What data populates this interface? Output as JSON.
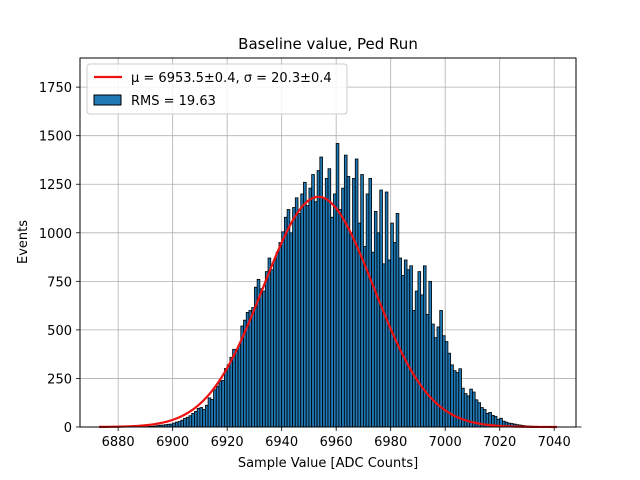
{
  "chart_data": {
    "type": "bar",
    "title": "Baseline value, Ped Run",
    "xlabel": "Sample Value [ADC Counts]",
    "ylabel": "Events",
    "xlim": [
      6866,
      7048
    ],
    "ylim": [
      0,
      1900
    ],
    "xticks": [
      6880,
      6900,
      6920,
      6940,
      6960,
      6980,
      7000,
      7020,
      7040
    ],
    "yticks": [
      0,
      250,
      500,
      750,
      1000,
      1250,
      1500,
      1750
    ],
    "grid": true,
    "legend_position": "top-left",
    "bin_width": 1,
    "bin_start": 6873,
    "colors": {
      "bar": "#1f77b4",
      "bar_edge": "#000000",
      "fit": "#ee1111",
      "grid": "#b0b0b0"
    },
    "histogram": {
      "name": "RMS = 19.63",
      "values": [
        0,
        0,
        0,
        0,
        0,
        0,
        0,
        0,
        0,
        0,
        0,
        0,
        0,
        0,
        0,
        0,
        1,
        2,
        3,
        4,
        5,
        7,
        9,
        10,
        12,
        14,
        15,
        20,
        25,
        28,
        35,
        44,
        50,
        58,
        70,
        80,
        96,
        100,
        90,
        112,
        150,
        142,
        192,
        210,
        237,
        240,
        301,
        320,
        359,
        400,
        395,
        421,
        520,
        550,
        590,
        600,
        615,
        720,
        760,
        712,
        700,
        800,
        870,
        810,
        860,
        900,
        950,
        1005,
        1080,
        1120,
        1000,
        1130,
        1180,
        1100,
        1200,
        1260,
        1140,
        1230,
        1300,
        1160,
        1320,
        1390,
        1180,
        1280,
        1330,
        1080,
        1200,
        1460,
        1120,
        1230,
        1400,
        1290,
        1000,
        1280,
        1380,
        1050,
        1300,
        930,
        1200,
        1280,
        900,
        1110,
        1000,
        1220,
        840,
        1210,
        860,
        1050,
        950,
        1100,
        870,
        780,
        860,
        810,
        830,
        600,
        700,
        800,
        680,
        830,
        580,
        750,
        530,
        460,
        515,
        600,
        470,
        440,
        380,
        320,
        290,
        280,
        300,
        200,
        172,
        160,
        195,
        180,
        140,
        125,
        100,
        90,
        70,
        75,
        60,
        55,
        40,
        45,
        30,
        25,
        20,
        18,
        15,
        12,
        10,
        8,
        6,
        5,
        4,
        3,
        2,
        2,
        1,
        1,
        0,
        0,
        0,
        0,
        0,
        0,
        0,
        0,
        0,
        0,
        0,
        0,
        0
      ]
    },
    "series": [
      {
        "name": "μ = 6953.5±0.4, σ = 20.3±0.4",
        "fit": "gaussian",
        "mean": 6953.5,
        "sigma": 20.3,
        "amplitude": 1185,
        "x_range": [
          6873,
          7041
        ]
      }
    ]
  }
}
